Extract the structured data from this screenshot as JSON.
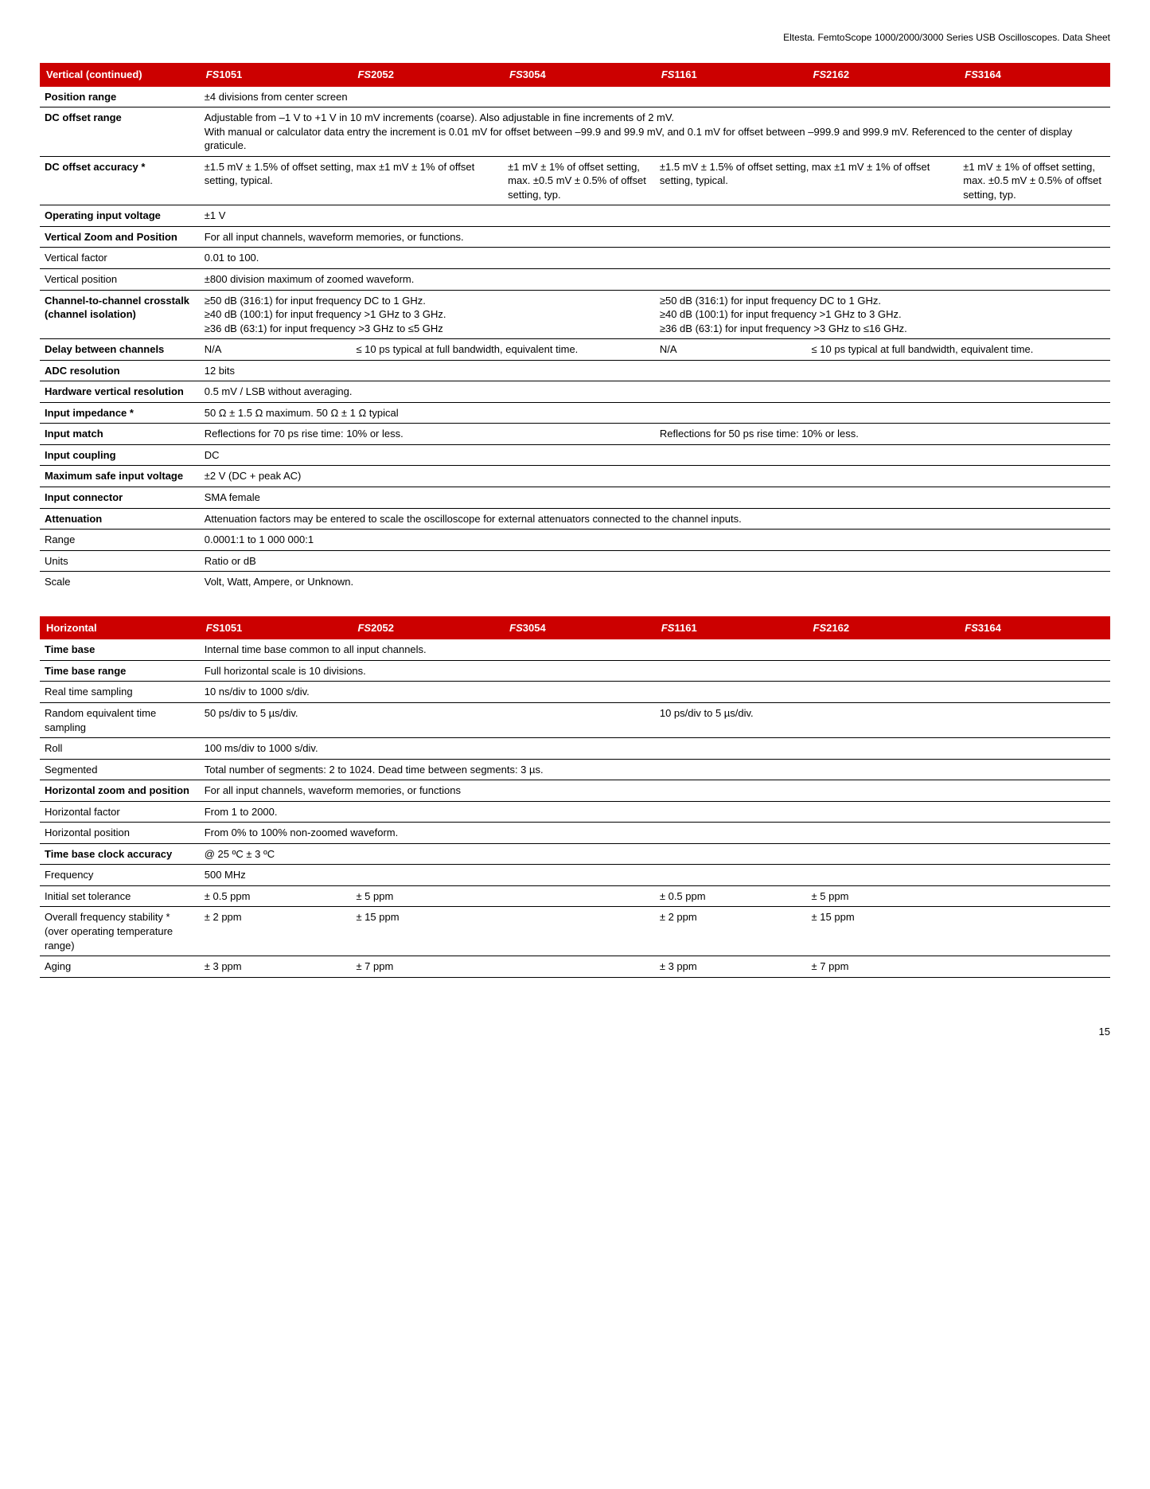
{
  "header_text": "Eltesta. FemtoScope 1000/2000/3000 Series USB Oscilloscopes. Data Sheet",
  "page_number": "15",
  "models": [
    "FS1051",
    "FS2052",
    "FS3054",
    "FS1161",
    "FS2162",
    "FS3164"
  ],
  "section1": {
    "title": "Vertical (continued)",
    "rows": {
      "position_range": {
        "label": "Position range",
        "value": "±4 divisions from center screen"
      },
      "dc_offset_range": {
        "label": "DC offset range",
        "line1": "Adjustable from –1 V to +1 V in 10 mV increments (coarse). Also adjustable in fine increments of 2 mV.",
        "line2": "With manual or calculator data entry the increment is 0.01 mV for offset between –99.9 and 99.9 mV, and 0.1 mV for offset between –999.9 and 999.9 mV. Referenced to the center of display graticule."
      },
      "dc_offset_accuracy": {
        "label": "DC offset accuracy *",
        "col_a": "±1.5 mV ± 1.5% of offset setting, max ±1 mV ± 1% of offset setting, typical.",
        "col_b": "±1 mV ± 1% of offset setting, max. ±0.5 mV ± 0.5% of offset setting, typ.",
        "col_c": "±1.5 mV ± 1.5% of offset setting, max ±1 mV ± 1% of offset setting, typical.",
        "col_d": "±1 mV ± 1% of offset setting, max. ±0.5 mV ± 0.5% of offset setting, typ."
      },
      "operating_input_voltage": {
        "label": "Operating input voltage",
        "value": "±1 V"
      },
      "vertical_zoom": {
        "label": "Vertical Zoom and Position",
        "value": "For all input channels, waveform memories, or functions."
      },
      "vertical_factor": {
        "label": "Vertical factor",
        "value": "0.01 to 100."
      },
      "vertical_position": {
        "label": "Vertical position",
        "value": "±800 division maximum of zoomed waveform."
      },
      "crosstalk": {
        "label": "Channel-to-channel crosstalk (channel isolation)",
        "left1": "≥50 dB (316:1) for input frequency DC to 1 GHz.",
        "left2": "≥40 dB (100:1) for input frequency >1 GHz to 3 GHz.",
        "left3": "≥36 dB (63:1) for input frequency >3 GHz to ≤5 GHz",
        "right1": "≥50 dB (316:1) for input frequency DC to 1 GHz.",
        "right2": "≥40 dB (100:1) for input frequency >1 GHz to 3 GHz.",
        "right3": "≥36 dB (63:1) for input frequency >3 GHz to ≤16 GHz."
      },
      "delay_between": {
        "label": "Delay between channels",
        "c1": "N/A",
        "c2": "≤ 10 ps typical at full bandwidth, equivalent time.",
        "c3": "N/A",
        "c4": "≤ 10 ps typical at full bandwidth, equivalent time."
      },
      "adc_res": {
        "label": "ADC resolution",
        "value": "12 bits"
      },
      "hw_vert_res": {
        "label": "Hardware vertical resolution",
        "value": "0.5 mV / LSB without averaging."
      },
      "input_imp": {
        "label": "Input impedance *",
        "value": "50 Ω ± 1.5 Ω maximum. 50 Ω ± 1 Ω typical"
      },
      "input_match": {
        "label": "Input match",
        "left": "Reflections for 70 ps rise time: 10% or less.",
        "right": "Reflections for 50 ps rise time: 10% or less."
      },
      "input_coupling": {
        "label": "Input coupling",
        "value": "DC"
      },
      "max_safe": {
        "label": "Maximum safe input voltage",
        "value": "±2 V (DC + peak AC)"
      },
      "input_conn": {
        "label": "Input connector",
        "value": "SMA female"
      },
      "attenuation": {
        "label": "Attenuation",
        "value": "Attenuation factors may be entered to scale the oscilloscope for external attenuators connected to the channel inputs."
      },
      "att_range": {
        "label": "Range",
        "value": "0.0001:1 to 1 000 000:1"
      },
      "att_units": {
        "label": "Units",
        "value": "Ratio or dB"
      },
      "att_scale": {
        "label": "Scale",
        "value": "Volt, Watt, Ampere, or Unknown."
      }
    }
  },
  "section2": {
    "title": "Horizontal",
    "rows": {
      "time_base": {
        "label": "Time base",
        "value": "Internal time base common to all input channels."
      },
      "time_base_range": {
        "label": "Time base range",
        "value": "Full horizontal scale is 10 divisions."
      },
      "real_time": {
        "label": "Real time sampling",
        "value": "10 ns/div to 1000 s/div."
      },
      "random_equiv": {
        "label": "Random equivalent time sampling",
        "left": "50 ps/div to 5 µs/div.",
        "right": "10 ps/div to 5 µs/div."
      },
      "roll": {
        "label": "Roll",
        "value": "100 ms/div to 1000 s/div."
      },
      "segmented": {
        "label": "Segmented",
        "value": "Total number of segments: 2 to 1024. Dead time between segments: 3 µs."
      },
      "horiz_zoom": {
        "label": "Horizontal zoom and position",
        "value": "For all input channels, waveform memories, or functions"
      },
      "horiz_factor": {
        "label": "Horizontal factor",
        "value": "From 1 to 2000."
      },
      "horiz_position": {
        "label": "Horizontal position",
        "value": "From 0% to 100% non-zoomed waveform."
      },
      "clock_acc": {
        "label": "Time base clock accuracy",
        "value": "@ 25 ºC ± 3 ºC"
      },
      "frequency": {
        "label": "Frequency",
        "value": "500 MHz"
      },
      "initial_tol": {
        "label": "Initial set tolerance",
        "c1": "± 0.5 ppm",
        "c2": "± 5 ppm",
        "c4": "± 0.5 ppm",
        "c5": "± 5 ppm"
      },
      "stability": {
        "label": "Overall frequency stability * (over operating temperature range)",
        "c1": "± 2 ppm",
        "c2": "± 15 ppm",
        "c4": "± 2 ppm",
        "c5": "± 15 ppm"
      },
      "aging": {
        "label": "Aging",
        "c1": "± 3 ppm",
        "c2": "± 7 ppm",
        "c4": "± 3 ppm",
        "c5": "± 7 ppm"
      }
    }
  }
}
